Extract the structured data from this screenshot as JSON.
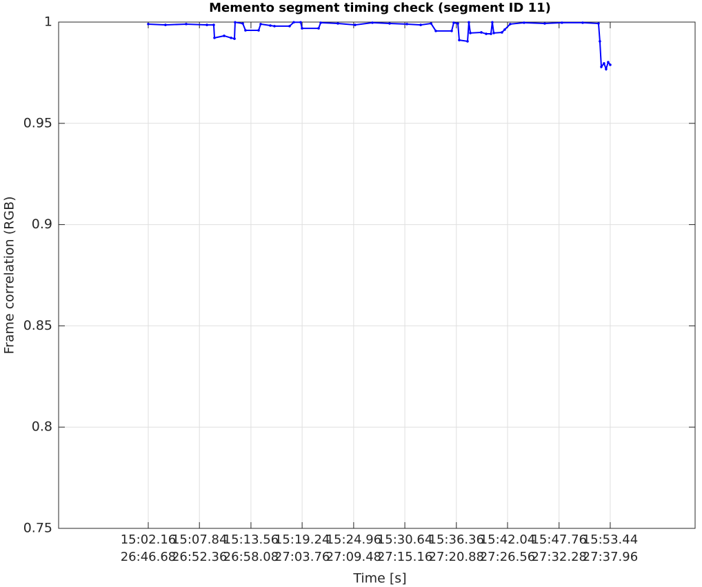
{
  "chart_data": {
    "type": "line",
    "title": "Memento segment timing check (segment ID 11)",
    "xlabel": "Time [s]",
    "ylabel": "Frame correlation (RGB)",
    "grid": true,
    "xlim": [
      892.21,
      962.86
    ],
    "ylim": [
      0.75,
      1
    ],
    "yticks": [
      0.75,
      0.8,
      0.85,
      0.9,
      0.95,
      1
    ],
    "xticks": [
      {
        "value": 902.16,
        "label": "15:02.16\n26:46.68"
      },
      {
        "value": 907.84,
        "label": "15:07.84\n26:52.36"
      },
      {
        "value": 913.56,
        "label": "15:13.56\n26:58.08"
      },
      {
        "value": 919.24,
        "label": "15:19.24\n27:03.76"
      },
      {
        "value": 924.96,
        "label": "15:24.96\n27:09.48"
      },
      {
        "value": 930.64,
        "label": "15:30.64\n27:15.16"
      },
      {
        "value": 936.36,
        "label": "15:36.36\n27:20.88"
      },
      {
        "value": 942.04,
        "label": "15:42.04\n27:26.56"
      },
      {
        "value": 947.76,
        "label": "15:47.76\n27:32.28"
      },
      {
        "value": 953.44,
        "label": "15:53.44\n27:37.96"
      }
    ],
    "series": [
      {
        "color": "#0000ff",
        "x": [
          902.16,
          904.07,
          906.37,
          908.67,
          909.43,
          909.51,
          910.58,
          911.35,
          911.73,
          911.8,
          912.65,
          912.95,
          914.41,
          914.64,
          915.71,
          916.17,
          917.85,
          918.31,
          919.08,
          919.23,
          921.07,
          921.3,
          923.21,
          925.12,
          927.04,
          928.95,
          930.87,
          932.4,
          933.55,
          934.08,
          935.84,
          936.07,
          936.53,
          936.68,
          937.6,
          937.75,
          937.91,
          939.13,
          939.67,
          940.2,
          940.35,
          940.51,
          941.42,
          941.73,
          942.34,
          943.87,
          946.17,
          948.08,
          950.38,
          952.14,
          952.29,
          952.45,
          952.75,
          952.98,
          953.21,
          953.44
        ],
        "values": [
          0.999,
          0.9986,
          0.999,
          0.9986,
          0.9986,
          0.9922,
          0.9932,
          0.9922,
          0.9918,
          0.9999,
          0.9993,
          0.9959,
          0.9959,
          0.999,
          0.9983,
          0.998,
          0.998,
          0.9999,
          0.9999,
          0.9969,
          0.9969,
          0.9997,
          0.9993,
          0.9986,
          0.9997,
          0.9993,
          0.999,
          0.9986,
          0.9993,
          0.9956,
          0.9956,
          0.9997,
          0.9993,
          0.9911,
          0.9905,
          0.9999,
          0.9946,
          0.9949,
          0.9942,
          0.9942,
          0.9999,
          0.9946,
          0.9949,
          0.9963,
          0.999,
          0.9997,
          0.9993,
          0.9997,
          0.9997,
          0.9993,
          0.9905,
          0.9779,
          0.9796,
          0.9768,
          0.9802,
          0.9789
        ]
      }
    ]
  }
}
